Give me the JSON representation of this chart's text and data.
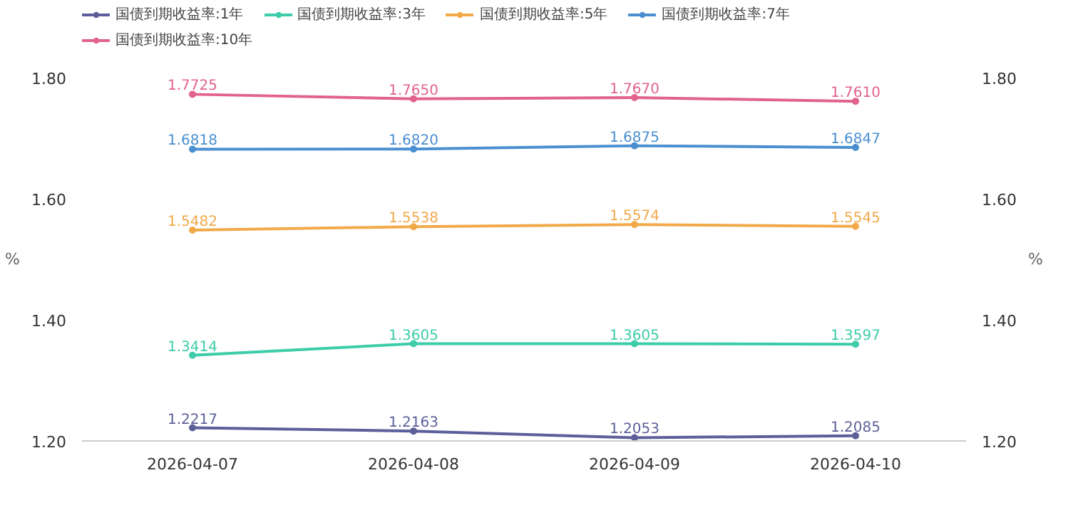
{
  "chart_data": {
    "type": "line",
    "categories": [
      "2026-04-07",
      "2026-04-08",
      "2026-04-09",
      "2026-04-10"
    ],
    "ylabel": "%",
    "y2label": "%",
    "ylim": [
      1.2,
      1.8
    ],
    "yticks": [
      {
        "value": 1.2,
        "label": "1.20"
      },
      {
        "value": 1.4,
        "label": "1.40"
      },
      {
        "value": 1.6,
        "label": "1.60"
      },
      {
        "value": 1.8,
        "label": "1.80"
      }
    ],
    "y2lim": [
      1.2,
      1.8
    ],
    "y2ticks": [
      {
        "value": 1.2,
        "label": "1.20"
      },
      {
        "value": 1.4,
        "label": "1.40"
      },
      {
        "value": 1.6,
        "label": "1.60"
      },
      {
        "value": 1.8,
        "label": "1.80"
      }
    ],
    "grid": false,
    "legend": "top left",
    "marker": "circle",
    "line_style": "solid",
    "data_labels": true,
    "series": [
      {
        "name": "国债到期收益率:1年",
        "color": "#5c5f99",
        "values": [
          1.2217,
          1.2163,
          1.2053,
          1.2085
        ],
        "value_labels": [
          "1.2217",
          "1.2163",
          "1.2053",
          "1.2085"
        ]
      },
      {
        "name": "国债到期收益率:3年",
        "color": "#3dcca9",
        "values": [
          1.3414,
          1.3605,
          1.3605,
          1.3597
        ],
        "value_labels": [
          "1.3414",
          "1.3605",
          "1.3605",
          "1.3597"
        ]
      },
      {
        "name": "国债到期收益率:5年",
        "color": "#f2a94a",
        "values": [
          1.5482,
          1.5538,
          1.5574,
          1.5545
        ],
        "value_labels": [
          "1.5482",
          "1.5538",
          "1.5574",
          "1.5545"
        ]
      },
      {
        "name": "国债到期收益率:7年",
        "color": "#4a8fd0",
        "values": [
          1.6818,
          1.682,
          1.6875,
          1.6847
        ],
        "value_labels": [
          "1.6818",
          "1.6820",
          "1.6875",
          "1.6847"
        ]
      },
      {
        "name": "国债到期收益率:10年",
        "color": "#e2628f",
        "values": [
          1.7725,
          1.765,
          1.767,
          1.761
        ],
        "value_labels": [
          "1.7725",
          "1.7650",
          "1.7670",
          "1.7610"
        ]
      }
    ]
  }
}
